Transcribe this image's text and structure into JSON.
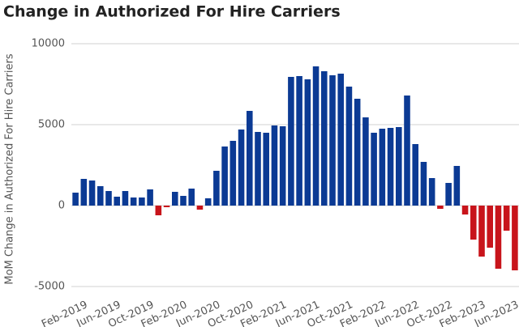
{
  "chart_data": {
    "type": "bar",
    "title": "Change in Authorized For Hire Carriers",
    "y_label": "MoM Change in Authorized For Hire Carriers",
    "categories": [
      null,
      "Feb-2019",
      null,
      null,
      null,
      "Jun-2019",
      null,
      null,
      null,
      "Oct-2019",
      null,
      null,
      null,
      "Feb-2020",
      null,
      null,
      null,
      "Jun-2020",
      null,
      null,
      null,
      "Oct-2020",
      null,
      null,
      null,
      "Feb-2021",
      null,
      null,
      null,
      "Jun-2021",
      null,
      null,
      null,
      "Oct-2021",
      null,
      null,
      null,
      "Feb-2022",
      null,
      null,
      null,
      "Jun-2022",
      null,
      null,
      null,
      "Oct-2022",
      null,
      null,
      null,
      "Feb-2023",
      null,
      null,
      null,
      "Jun-2023"
    ],
    "values": [
      800,
      1650,
      1550,
      1200,
      900,
      550,
      900,
      500,
      500,
      1000,
      -600,
      -100,
      850,
      600,
      1050,
      -250,
      450,
      2150,
      3650,
      4000,
      4700,
      5850,
      4550,
      4500,
      4950,
      4900,
      7950,
      8000,
      7800,
      8600,
      8300,
      8050,
      8150,
      7350,
      6600,
      5450,
      4500,
      4750,
      4800,
      4850,
      6800,
      3800,
      2700,
      1700,
      -200,
      1400,
      2450,
      -550,
      -2100,
      -3150,
      -2600,
      -3900,
      -1550,
      -4000
    ],
    "color": "#0b3a94",
    "negative_color": "#c8141b",
    "ylim": [
      -5500,
      10500
    ],
    "yticks": [
      -5000,
      0,
      5000,
      10000
    ],
    "grid": true
  }
}
